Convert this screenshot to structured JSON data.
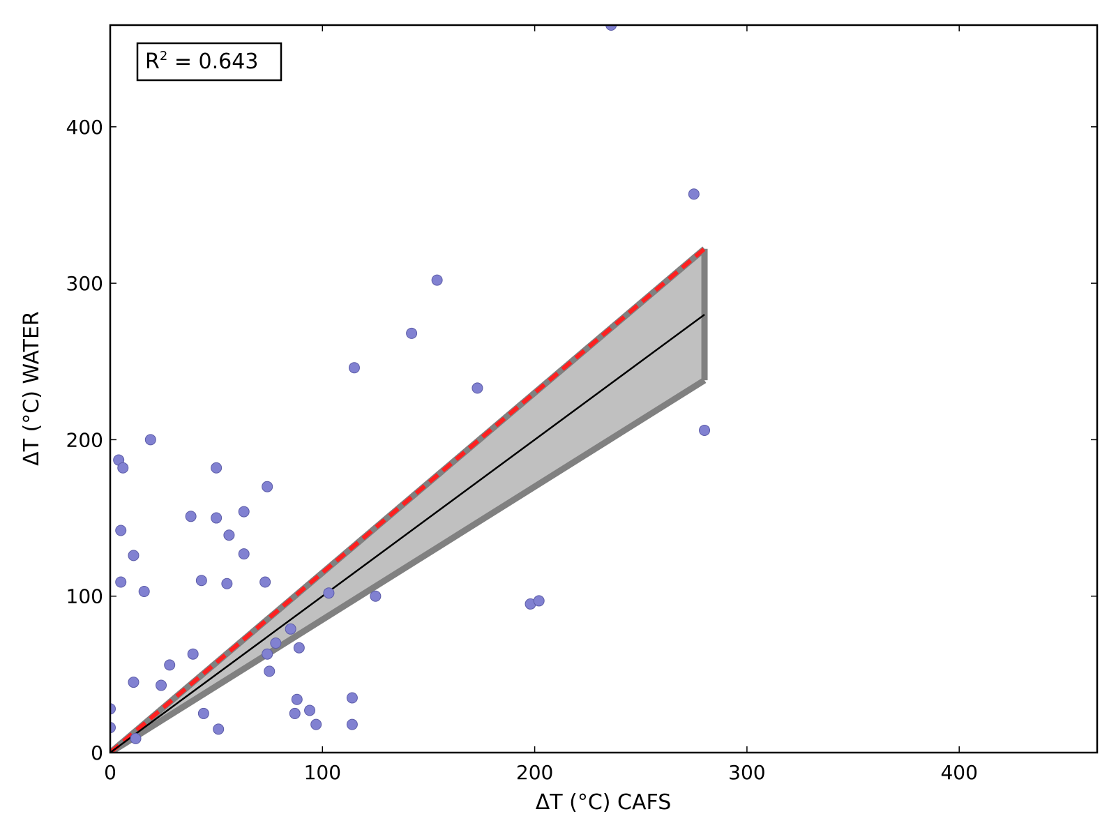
{
  "chart_data": {
    "type": "scatter",
    "xlabel": "ΔT (°C) CAFS",
    "ylabel": "ΔT (°C) WATER",
    "xlim": [
      0,
      465
    ],
    "ylim": [
      0,
      465
    ],
    "x_ticks": [
      0,
      100,
      200,
      300,
      400
    ],
    "y_ticks": [
      0,
      100,
      200,
      300,
      400
    ],
    "grid": false,
    "annotation": {
      "r2_prefix": "R",
      "r2_exponent": "2",
      "r2_value": " = 0.643"
    },
    "colors": {
      "points": "#8181d1",
      "points_edge": "#5c5ca8",
      "fit_line": "#000000",
      "band_fill": "#c0c0c0",
      "band_edge": "#808080",
      "dashed_line": "#ff2020"
    },
    "fit": {
      "slope": 1.0,
      "x_range": [
        0,
        280
      ],
      "band_upper_slope": 1.15,
      "band_lower_slope": 0.85,
      "dashed_slope": 1.15
    },
    "points": [
      {
        "x": 0,
        "y": 28
      },
      {
        "x": 0,
        "y": 16
      },
      {
        "x": 4,
        "y": 187
      },
      {
        "x": 6,
        "y": 182
      },
      {
        "x": 5,
        "y": 142
      },
      {
        "x": 5,
        "y": 109
      },
      {
        "x": 11,
        "y": 126
      },
      {
        "x": 11,
        "y": 45
      },
      {
        "x": 12,
        "y": 9
      },
      {
        "x": 16,
        "y": 103
      },
      {
        "x": 19,
        "y": 200
      },
      {
        "x": 24,
        "y": 43
      },
      {
        "x": 28,
        "y": 56
      },
      {
        "x": 38,
        "y": 151
      },
      {
        "x": 39,
        "y": 63
      },
      {
        "x": 43,
        "y": 110
      },
      {
        "x": 44,
        "y": 25
      },
      {
        "x": 50,
        "y": 182
      },
      {
        "x": 50,
        "y": 150
      },
      {
        "x": 51,
        "y": 15
      },
      {
        "x": 55,
        "y": 108
      },
      {
        "x": 56,
        "y": 139
      },
      {
        "x": 63,
        "y": 154
      },
      {
        "x": 63,
        "y": 127
      },
      {
        "x": 73,
        "y": 109
      },
      {
        "x": 74,
        "y": 170
      },
      {
        "x": 74,
        "y": 63
      },
      {
        "x": 75,
        "y": 52
      },
      {
        "x": 78,
        "y": 70
      },
      {
        "x": 85,
        "y": 79
      },
      {
        "x": 87,
        "y": 25
      },
      {
        "x": 88,
        "y": 34
      },
      {
        "x": 89,
        "y": 67
      },
      {
        "x": 94,
        "y": 27
      },
      {
        "x": 97,
        "y": 18
      },
      {
        "x": 103,
        "y": 102
      },
      {
        "x": 114,
        "y": 35
      },
      {
        "x": 114,
        "y": 18
      },
      {
        "x": 115,
        "y": 246
      },
      {
        "x": 125,
        "y": 100
      },
      {
        "x": 142,
        "y": 268
      },
      {
        "x": 154,
        "y": 302
      },
      {
        "x": 173,
        "y": 233
      },
      {
        "x": 198,
        "y": 95
      },
      {
        "x": 202,
        "y": 97
      },
      {
        "x": 236,
        "y": 465
      },
      {
        "x": 275,
        "y": 357
      },
      {
        "x": 280,
        "y": 206
      }
    ]
  }
}
